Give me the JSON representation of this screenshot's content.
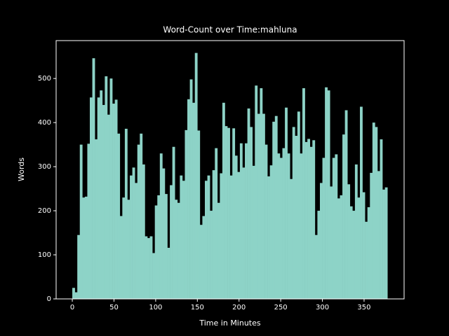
{
  "chart_data": {
    "type": "bar",
    "title": "Word-Count over Time:mahluna",
    "xlabel": "Time in Minutes",
    "ylabel": "Words",
    "x": [
      0,
      3,
      6,
      9,
      12,
      15,
      18,
      21,
      24,
      27,
      30,
      33,
      36,
      39,
      42,
      45,
      48,
      51,
      54,
      57,
      60,
      63,
      66,
      69,
      72,
      75,
      78,
      81,
      84,
      87,
      90,
      93,
      96,
      99,
      102,
      105,
      108,
      111,
      114,
      117,
      120,
      123,
      126,
      129,
      132,
      135,
      138,
      141,
      144,
      147,
      150,
      153,
      156,
      159,
      162,
      165,
      168,
      171,
      174,
      177,
      180,
      183,
      186,
      189,
      192,
      195,
      198,
      201,
      204,
      207,
      210,
      213,
      216,
      219,
      222,
      225,
      228,
      231,
      234,
      237,
      240,
      243,
      246,
      249,
      252,
      255,
      258,
      261,
      264,
      267,
      270,
      273,
      276,
      279,
      282,
      285,
      288,
      291,
      294,
      297,
      300,
      303,
      306,
      309,
      312,
      315,
      318,
      321,
      324,
      327,
      330,
      333,
      336,
      339,
      342,
      345,
      348,
      351,
      354,
      357,
      360,
      363,
      366,
      369,
      372,
      375
    ],
    "values": [
      25,
      15,
      145,
      350,
      230,
      232,
      352,
      457,
      546,
      362,
      457,
      473,
      440,
      505,
      418,
      500,
      443,
      452,
      375,
      188,
      230,
      386,
      225,
      280,
      298,
      263,
      350,
      375,
      305,
      142,
      138,
      142,
      104,
      212,
      235,
      330,
      296,
      238,
      116,
      258,
      345,
      225,
      218,
      280,
      268,
      383,
      453,
      498,
      445,
      558,
      382,
      168,
      188,
      268,
      280,
      200,
      292,
      342,
      218,
      285,
      445,
      392,
      388,
      280,
      387,
      325,
      288,
      353,
      298,
      353,
      432,
      390,
      302,
      484,
      420,
      478,
      420,
      350,
      278,
      303,
      402,
      415,
      330,
      320,
      342,
      434,
      330,
      272,
      390,
      370,
      425,
      330,
      478,
      356,
      363,
      345,
      360,
      145,
      200,
      263,
      320,
      480,
      473,
      255,
      320,
      328,
      228,
      235,
      373,
      428,
      260,
      210,
      200,
      305,
      230,
      436,
      242,
      175,
      208,
      286,
      400,
      390,
      290,
      362,
      248,
      253
    ],
    "color": "#8dd3c7",
    "xlim": [
      -19.4,
      398
    ],
    "ylim": [
      0,
      586
    ],
    "xticks": [
      0,
      50,
      100,
      150,
      200,
      250,
      300,
      350
    ],
    "yticks": [
      0,
      100,
      200,
      300,
      400,
      500
    ]
  }
}
